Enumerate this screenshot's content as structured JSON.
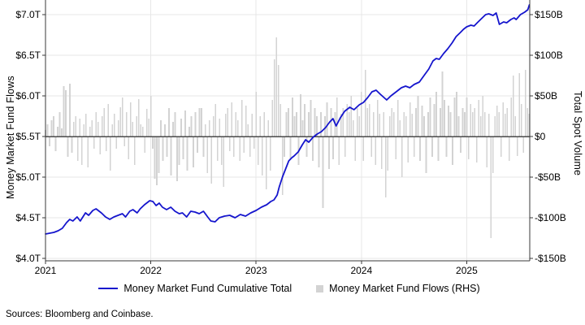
{
  "chart_data": {
    "type": "line+bar",
    "source": "Sources: Bloomberg and Coinbase.",
    "x_axis": {
      "ticks": [
        2021,
        2022,
        2023,
        2024,
        2025
      ],
      "range": [
        2021.0,
        2025.6
      ]
    },
    "left_axis": {
      "title": "Money Market Fund Flows",
      "tick_labels": [
        "$7.0T",
        "$6.5T",
        "$6.0T",
        "$5.5T",
        "$5.0T",
        "$4.5T",
        "$4.0T"
      ],
      "tick_values_T": [
        7.0,
        6.5,
        6.0,
        5.5,
        5.0,
        4.5,
        4.0
      ],
      "range_T": [
        4.0,
        7.0
      ]
    },
    "right_axis": {
      "title": "Total Spot Volume",
      "tick_labels": [
        "$150B",
        "$100B",
        "$50B",
        "$0",
        "-$50B",
        "-$100B",
        "-$150B"
      ],
      "tick_values_B": [
        150,
        100,
        50,
        0,
        -50,
        -100,
        -150
      ],
      "range_B": [
        -150,
        150
      ]
    },
    "grid": {
      "horizontal": true,
      "vertical_years": true,
      "color": "#e7e7e7",
      "zero_line_color": "#4a4a4a",
      "spine_color": "#3a3a3a"
    },
    "series": [
      {
        "name": "Money Market Fund Cumulative Total",
        "type": "line",
        "axis": "left",
        "color": "#1515cd",
        "unit": "trillion USD",
        "points_year_value": [
          [
            2021.0,
            4.3
          ],
          [
            2021.04,
            4.31
          ],
          [
            2021.08,
            4.32
          ],
          [
            2021.12,
            4.34
          ],
          [
            2021.16,
            4.37
          ],
          [
            2021.2,
            4.44
          ],
          [
            2021.23,
            4.48
          ],
          [
            2021.26,
            4.46
          ],
          [
            2021.3,
            4.51
          ],
          [
            2021.33,
            4.46
          ],
          [
            2021.38,
            4.56
          ],
          [
            2021.41,
            4.53
          ],
          [
            2021.45,
            4.59
          ],
          [
            2021.48,
            4.61
          ],
          [
            2021.53,
            4.56
          ],
          [
            2021.57,
            4.51
          ],
          [
            2021.61,
            4.48
          ],
          [
            2021.65,
            4.51
          ],
          [
            2021.69,
            4.53
          ],
          [
            2021.73,
            4.55
          ],
          [
            2021.76,
            4.51
          ],
          [
            2021.8,
            4.58
          ],
          [
            2021.83,
            4.6
          ],
          [
            2021.87,
            4.56
          ],
          [
            2021.9,
            4.61
          ],
          [
            2021.94,
            4.66
          ],
          [
            2021.99,
            4.71
          ],
          [
            2022.02,
            4.7
          ],
          [
            2022.05,
            4.65
          ],
          [
            2022.08,
            4.68
          ],
          [
            2022.11,
            4.63
          ],
          [
            2022.15,
            4.6
          ],
          [
            2022.19,
            4.63
          ],
          [
            2022.23,
            4.58
          ],
          [
            2022.27,
            4.55
          ],
          [
            2022.3,
            4.56
          ],
          [
            2022.34,
            4.51
          ],
          [
            2022.38,
            4.58
          ],
          [
            2022.42,
            4.57
          ],
          [
            2022.46,
            4.55
          ],
          [
            2022.5,
            4.58
          ],
          [
            2022.54,
            4.51
          ],
          [
            2022.57,
            4.46
          ],
          [
            2022.61,
            4.45
          ],
          [
            2022.65,
            4.5
          ],
          [
            2022.7,
            4.52
          ],
          [
            2022.75,
            4.53
          ],
          [
            2022.8,
            4.5
          ],
          [
            2022.85,
            4.54
          ],
          [
            2022.9,
            4.52
          ],
          [
            2022.95,
            4.56
          ],
          [
            2023.0,
            4.59
          ],
          [
            2023.05,
            4.63
          ],
          [
            2023.1,
            4.66
          ],
          [
            2023.14,
            4.7
          ],
          [
            2023.17,
            4.72
          ],
          [
            2023.2,
            4.78
          ],
          [
            2023.22,
            4.88
          ],
          [
            2023.25,
            5.0
          ],
          [
            2023.28,
            5.1
          ],
          [
            2023.31,
            5.2
          ],
          [
            2023.34,
            5.24
          ],
          [
            2023.36,
            5.26
          ],
          [
            2023.4,
            5.31
          ],
          [
            2023.44,
            5.4
          ],
          [
            2023.47,
            5.46
          ],
          [
            2023.5,
            5.43
          ],
          [
            2023.54,
            5.49
          ],
          [
            2023.58,
            5.53
          ],
          [
            2023.62,
            5.56
          ],
          [
            2023.66,
            5.61
          ],
          [
            2023.7,
            5.68
          ],
          [
            2023.73,
            5.72
          ],
          [
            2023.76,
            5.63
          ],
          [
            2023.8,
            5.73
          ],
          [
            2023.84,
            5.81
          ],
          [
            2023.89,
            5.86
          ],
          [
            2023.93,
            5.83
          ],
          [
            2023.98,
            5.89
          ],
          [
            2024.02,
            5.92
          ],
          [
            2024.06,
            5.98
          ],
          [
            2024.1,
            6.05
          ],
          [
            2024.14,
            6.07
          ],
          [
            2024.18,
            6.02
          ],
          [
            2024.24,
            5.95
          ],
          [
            2024.28,
            6.0
          ],
          [
            2024.33,
            6.05
          ],
          [
            2024.38,
            6.1
          ],
          [
            2024.42,
            6.12
          ],
          [
            2024.46,
            6.1
          ],
          [
            2024.5,
            6.14
          ],
          [
            2024.55,
            6.17
          ],
          [
            2024.6,
            6.26
          ],
          [
            2024.64,
            6.33
          ],
          [
            2024.68,
            6.43
          ],
          [
            2024.71,
            6.46
          ],
          [
            2024.74,
            6.45
          ],
          [
            2024.78,
            6.52
          ],
          [
            2024.82,
            6.58
          ],
          [
            2024.86,
            6.65
          ],
          [
            2024.9,
            6.73
          ],
          [
            2024.94,
            6.78
          ],
          [
            2024.97,
            6.82
          ],
          [
            2025.0,
            6.85
          ],
          [
            2025.04,
            6.87
          ],
          [
            2025.07,
            6.86
          ],
          [
            2025.1,
            6.9
          ],
          [
            2025.14,
            6.95
          ],
          [
            2025.18,
            7.0
          ],
          [
            2025.21,
            7.01
          ],
          [
            2025.25,
            6.99
          ],
          [
            2025.28,
            7.02
          ],
          [
            2025.31,
            6.88
          ],
          [
            2025.35,
            6.91
          ],
          [
            2025.38,
            6.9
          ],
          [
            2025.42,
            6.94
          ],
          [
            2025.45,
            6.96
          ],
          [
            2025.47,
            6.94
          ],
          [
            2025.51,
            7.0
          ],
          [
            2025.55,
            7.03
          ],
          [
            2025.58,
            7.06
          ],
          [
            2025.6,
            7.12
          ]
        ]
      },
      {
        "name": "Money Market Fund Flows (RHS)",
        "type": "bar",
        "axis": "right",
        "color": "#d3d3d3",
        "unit": "billion USD",
        "start_year": 2021.0,
        "step_years": 0.019231,
        "values": [
          8,
          15,
          -12,
          20,
          25,
          -18,
          12,
          30,
          10,
          62,
          57,
          -25,
          65,
          -20,
          18,
          25,
          -30,
          22,
          -35,
          15,
          28,
          -38,
          12,
          20,
          -15,
          30,
          18,
          -22,
          25,
          35,
          -18,
          40,
          -42,
          15,
          28,
          -15,
          20,
          36,
          48,
          -12,
          30,
          -28,
          42,
          18,
          -35,
          25,
          46,
          15,
          12,
          -20,
          34,
          22,
          50,
          -15,
          -52,
          -60,
          -45,
          20,
          -30,
          15,
          -25,
          35,
          -48,
          18,
          30,
          -55,
          -35,
          22,
          -28,
          32,
          -42,
          12,
          25,
          -38,
          30,
          -20,
          35,
          35,
          -25,
          15,
          -45,
          20,
          -58,
          25,
          40,
          -30,
          22,
          -35,
          -62,
          28,
          35,
          -18,
          42,
          -25,
          30,
          20,
          -30,
          45,
          -20,
          38,
          15,
          -25,
          28,
          -15,
          55,
          -35,
          25,
          -48,
          30,
          -65,
          20,
          -42,
          45,
          95,
          122,
          88,
          40,
          -72,
          -25,
          30,
          35,
          -28,
          48,
          25,
          30,
          -35,
          52,
          20,
          40,
          -25,
          30,
          45,
          -30,
          35,
          25,
          -38,
          30,
          -88,
          25,
          42,
          -40,
          35,
          -28,
          30,
          48,
          -35,
          28,
          35,
          -25,
          40,
          30,
          50,
          20,
          -30,
          35,
          25,
          55,
          -30,
          82,
          35,
          40,
          -25,
          30,
          -35,
          45,
          28,
          -40,
          30,
          -75,
          -42,
          25,
          35,
          30,
          -28,
          45,
          20,
          -50,
          30,
          25,
          -32,
          42,
          28,
          -25,
          35,
          50,
          -30,
          38,
          25,
          -45,
          30,
          48,
          -25,
          40,
          55,
          -30,
          35,
          80,
          45,
          -25,
          38,
          30,
          -35,
          48,
          55,
          25,
          -20,
          35,
          30,
          48,
          -28,
          40,
          30,
          35,
          -32,
          45,
          25,
          50,
          30,
          -38,
          28,
          -125,
          -45,
          25,
          38,
          30,
          -25,
          42,
          28,
          35,
          -30,
          48,
          75,
          25,
          -24,
          78,
          40,
          -20,
          82,
          35,
          28
        ]
      }
    ]
  }
}
